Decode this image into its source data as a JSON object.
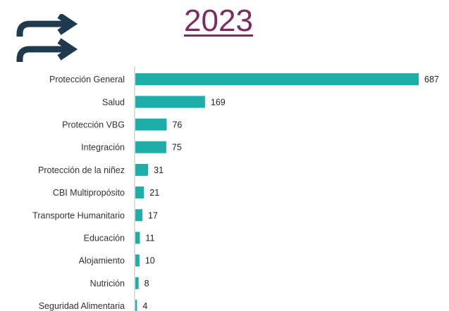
{
  "title": "2023",
  "colors": {
    "title": "#7b2d5f",
    "bar": "#1fada8",
    "icon": "#1d3b4c",
    "axis": "#bfbfbf"
  },
  "icon": "double-redo-arrows-icon",
  "chart_data": {
    "type": "bar",
    "orientation": "horizontal",
    "title": "",
    "xlabel": "",
    "ylabel": "",
    "grid": false,
    "legend": "none",
    "xlim": [
      0,
      700
    ],
    "categories": [
      "Protección General",
      "Salud",
      "Protección VBG",
      "Integración",
      "Protección de la niñez",
      "CBI Multipropósito",
      "Transporte Humanitario",
      "Educación",
      "Alojamiento",
      "Nutrición",
      "Seguridad Alimentaria"
    ],
    "values": [
      687,
      169,
      76,
      75,
      31,
      21,
      17,
      11,
      10,
      8,
      4
    ]
  }
}
